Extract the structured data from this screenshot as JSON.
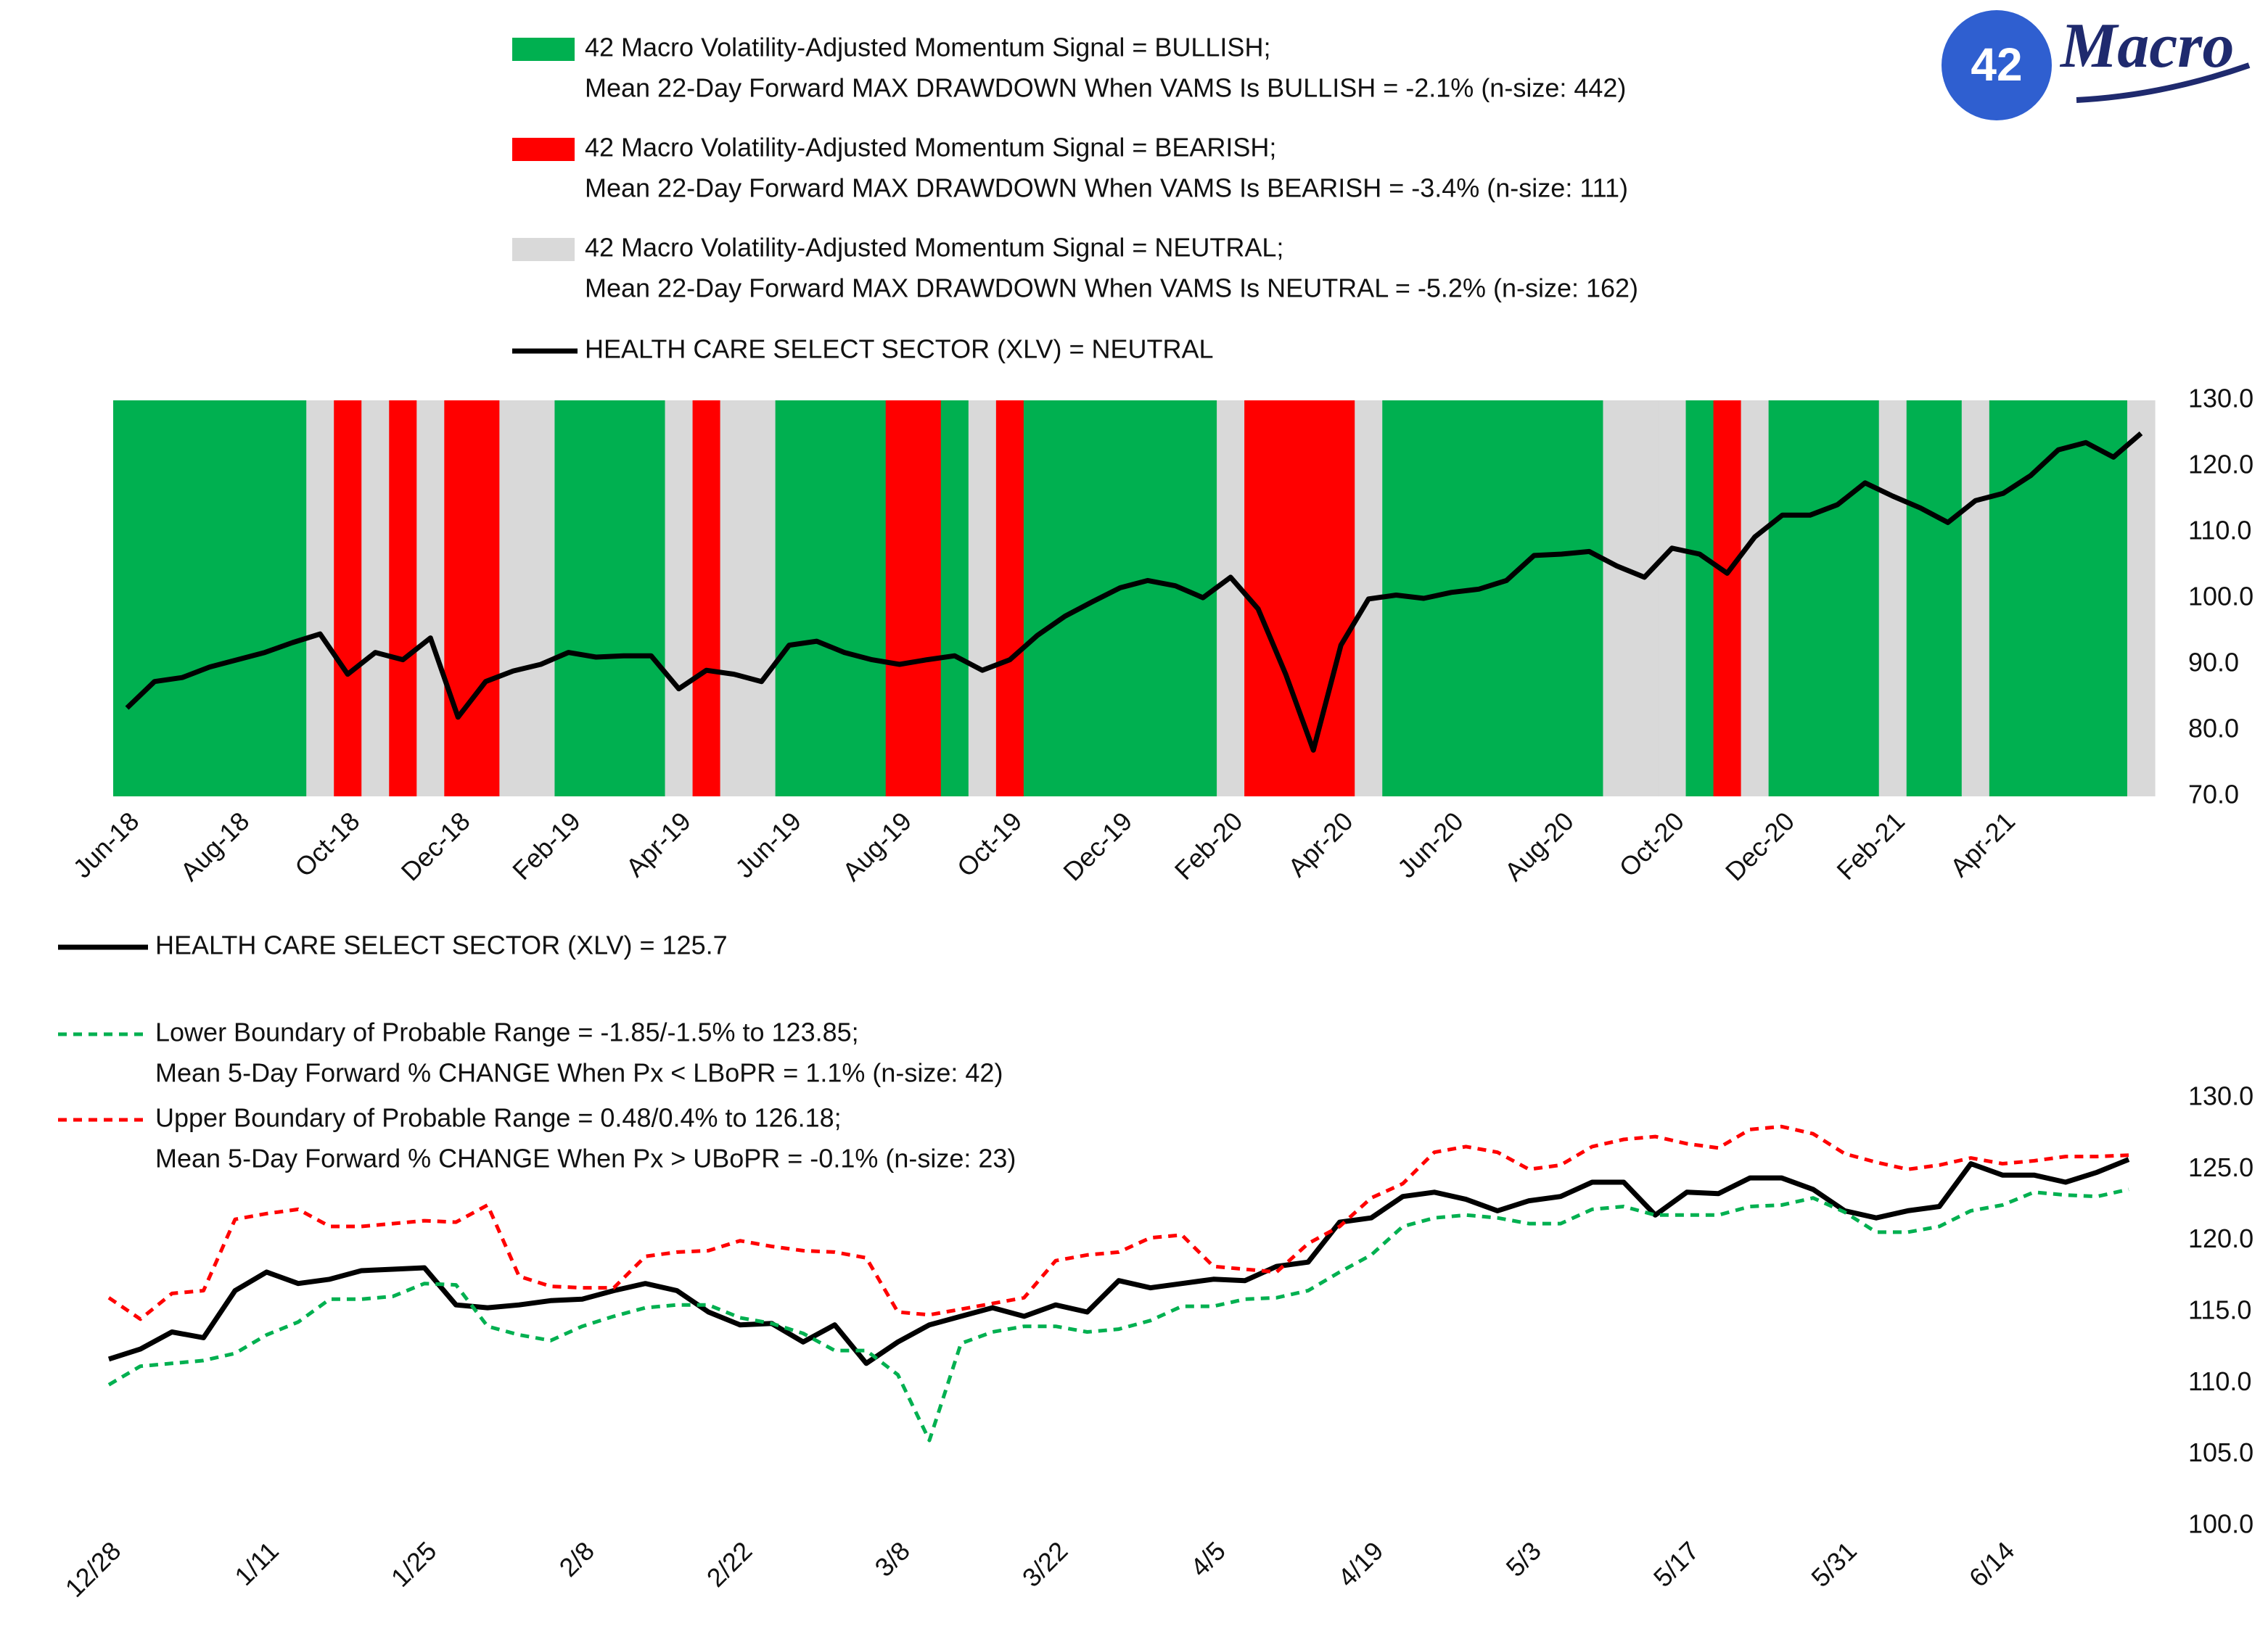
{
  "logo": {
    "number": "42",
    "word": "Macro"
  },
  "chart_data": [
    {
      "type": "line",
      "categories": [
        "Jun-18",
        null,
        null,
        null,
        "Aug-18",
        null,
        null,
        null,
        "Oct-18",
        null,
        null,
        null,
        "Dec-18",
        null,
        null,
        null,
        "Feb-19",
        null,
        null,
        null,
        "Apr-19",
        null,
        null,
        null,
        "Jun-19",
        null,
        null,
        null,
        "Aug-19",
        null,
        null,
        null,
        "Oct-19",
        null,
        null,
        null,
        "Dec-19",
        null,
        null,
        null,
        "Feb-20",
        null,
        null,
        null,
        "Apr-20",
        null,
        null,
        null,
        "Jun-20",
        null,
        null,
        null,
        "Aug-20",
        null,
        null,
        null,
        "Oct-20",
        null,
        null,
        null,
        "Dec-20",
        null,
        null,
        null,
        "Feb-21",
        null,
        null,
        null,
        "Apr-21",
        null,
        null,
        null,
        null,
        null
      ],
      "regime_legend": [
        {
          "state": "BULLISH",
          "color": "#00b050",
          "name": [
            "42 Macro Volatility-Adjusted Momentum Signal = BULLISH;",
            "Mean 22-Day Forward MAX DRAWDOWN When VAMS Is BULLISH = -2.1% (n-size: 442)"
          ]
        },
        {
          "state": "BEARISH",
          "color": "#ff0000",
          "name": [
            "42 Macro Volatility-Adjusted Momentum Signal = BEARISH;",
            "Mean 22-Day Forward MAX DRAWDOWN When VAMS Is BEARISH = -3.4% (n-size: 111)"
          ]
        },
        {
          "state": "NEUTRAL",
          "color": "#d9d9d9",
          "name": [
            "42 Macro Volatility-Adjusted Momentum Signal = NEUTRAL;",
            "Mean 22-Day Forward MAX DRAWDOWN When VAMS Is NEUTRAL = -5.2% (n-size: 162)"
          ]
        }
      ],
      "regimes": [
        "BULLISH",
        "BULLISH",
        "BULLISH",
        "BULLISH",
        "BULLISH",
        "BULLISH",
        "BULLISH",
        "NEUTRAL",
        "BEARISH",
        "NEUTRAL",
        "BEARISH",
        "NEUTRAL",
        "BEARISH",
        "BEARISH",
        "NEUTRAL",
        "NEUTRAL",
        "BULLISH",
        "BULLISH",
        "BULLISH",
        "BULLISH",
        "NEUTRAL",
        "BEARISH",
        "NEUTRAL",
        "NEUTRAL",
        "BULLISH",
        "BULLISH",
        "BULLISH",
        "BULLISH",
        "BEARISH",
        "BEARISH",
        "BULLISH",
        "NEUTRAL",
        "BEARISH",
        "BULLISH",
        "BULLISH",
        "BULLISH",
        "BULLISH",
        "BULLISH",
        "BULLISH",
        "BULLISH",
        "NEUTRAL",
        "BEARISH",
        "BEARISH",
        "BEARISH",
        "BEARISH",
        "NEUTRAL",
        "BULLISH",
        "BULLISH",
        "BULLISH",
        "BULLISH",
        "BULLISH",
        "BULLISH",
        "BULLISH",
        "BULLISH",
        "NEUTRAL",
        "NEUTRAL",
        "NEUTRAL",
        "BULLISH",
        "BEARISH",
        "NEUTRAL",
        "BULLISH",
        "BULLISH",
        "BULLISH",
        "BULLISH",
        "NEUTRAL",
        "BULLISH",
        "BULLISH",
        "NEUTRAL",
        "BULLISH",
        "BULLISH",
        "BULLISH",
        "BULLISH",
        "BULLISH",
        "NEUTRAL"
      ],
      "series": [
        {
          "name": [
            "HEALTH CARE SELECT SECTOR (XLV) = NEUTRAL"
          ],
          "color": "#000000",
          "dash": false,
          "values": [
            83.4,
            87.4,
            88,
            89.6,
            90.7,
            91.8,
            93.3,
            94.6,
            88.5,
            91.8,
            90.7,
            94,
            82,
            87.4,
            89,
            90,
            91.8,
            91.1,
            91.3,
            91.3,
            86.3,
            89.1,
            88.5,
            87.4,
            92.9,
            93.5,
            91.8,
            90.7,
            90,
            90.7,
            91.3,
            89.1,
            90.7,
            94.4,
            97.3,
            99.5,
            101.6,
            102.7,
            101.9,
            100.1,
            103.2,
            98.4,
            88.5,
            77,
            92.9,
            99.9,
            100.5,
            100,
            100.9,
            101.4,
            102.7,
            106.5,
            106.7,
            107.1,
            104.9,
            103.2,
            107.6,
            106.7,
            103.8,
            109.3,
            112.6,
            112.6,
            114.2,
            117.5,
            115.5,
            113.7,
            111.5,
            114.8,
            115.9,
            118.6,
            122.5,
            123.6,
            121.4,
            125
          ]
        }
      ],
      "ylim": [
        70,
        130
      ],
      "yticks": [
        {
          "value": 70,
          "label": "70.0"
        },
        {
          "value": 80,
          "label": "80.0"
        },
        {
          "value": 90,
          "label": "90.0"
        },
        {
          "value": 100,
          "label": "100.0"
        },
        {
          "value": 110,
          "label": "110.0"
        },
        {
          "value": 120,
          "label": "120.0"
        },
        {
          "value": 130,
          "label": "130.0"
        }
      ],
      "grid": false
    },
    {
      "type": "line",
      "categories": [
        "12/28",
        null,
        null,
        null,
        null,
        "1/11",
        null,
        null,
        null,
        null,
        "1/25",
        null,
        null,
        null,
        null,
        "2/8",
        null,
        null,
        null,
        null,
        "2/22",
        null,
        null,
        null,
        null,
        "3/8",
        null,
        null,
        null,
        null,
        "3/22",
        null,
        null,
        null,
        null,
        "4/5",
        null,
        null,
        null,
        null,
        "4/19",
        null,
        null,
        null,
        null,
        "5/3",
        null,
        null,
        null,
        null,
        "5/17",
        null,
        null,
        null,
        null,
        "5/31",
        null,
        null,
        null,
        null,
        "6/14",
        null,
        null,
        null,
        null
      ],
      "series": [
        {
          "name": [
            "HEALTH CARE SELECT SECTOR (XLV) = 125.7"
          ],
          "color": "#000000",
          "dash": false,
          "values": [
            111.7,
            112.4,
            113.6,
            113.2,
            116.5,
            117.8,
            117,
            117.3,
            117.9,
            118,
            118.1,
            115.5,
            115.3,
            115.5,
            115.8,
            115.9,
            116.5,
            117,
            116.5,
            115,
            114.1,
            114.2,
            112.9,
            114.1,
            111.4,
            112.9,
            114.1,
            114.7,
            115.3,
            114.7,
            115.5,
            115,
            117.2,
            116.7,
            117,
            117.3,
            117.2,
            118.2,
            118.5,
            121.3,
            121.6,
            123.1,
            123.4,
            122.9,
            122.1,
            122.8,
            123.1,
            124.1,
            124.1,
            121.8,
            123.4,
            123.3,
            124.4,
            124.4,
            123.6,
            122.1,
            121.6,
            122.1,
            122.4,
            125.4,
            124.6,
            124.6,
            124.1,
            124.8,
            125.7
          ]
        },
        {
          "name": [
            "Lower Boundary of Probable Range = -1.85/-1.5% to 123.85;",
            "Mean 5-Day Forward % CHANGE When Px < LBoPR = 1.1% (n-size: 42)"
          ],
          "color": "#00b050",
          "dash": true,
          "values": [
            109.9,
            111.2,
            111.4,
            111.6,
            112.1,
            113.4,
            114.3,
            115.9,
            115.9,
            116.1,
            117,
            116.9,
            114,
            113.4,
            113,
            114,
            114.7,
            115.3,
            115.5,
            115.5,
            114.6,
            114.2,
            113.5,
            112.3,
            112.3,
            110.6,
            106,
            112.8,
            113.6,
            114,
            114,
            113.6,
            113.8,
            114.4,
            115.4,
            115.4,
            115.9,
            116,
            116.5,
            117.8,
            119,
            121,
            121.6,
            121.8,
            121.6,
            121.2,
            121.2,
            122.2,
            122.4,
            121.8,
            121.8,
            121.8,
            122.4,
            122.5,
            123,
            122,
            120.6,
            120.6,
            121,
            122.1,
            122.5,
            123.4,
            123.2,
            123.1,
            123.6
          ]
        },
        {
          "name": [
            "Upper Boundary of Probable Range = 0.48/0.4% to 126.18;",
            "Mean 5-Day Forward % CHANGE When Px > UBoPR = -0.1% (n-size: 23)"
          ],
          "color": "#ff0000",
          "dash": true,
          "values": [
            116,
            114.5,
            116.3,
            116.5,
            121.5,
            121.9,
            122.2,
            121,
            121,
            121.2,
            121.4,
            121.3,
            122.5,
            117.5,
            116.8,
            116.7,
            116.7,
            118.9,
            119.2,
            119.3,
            120,
            119.6,
            119.3,
            119.2,
            118.8,
            115,
            114.8,
            115.2,
            115.6,
            116,
            118.6,
            119,
            119.2,
            120.2,
            120.4,
            118.2,
            118,
            117.8,
            119.8,
            121,
            123,
            124,
            126.2,
            126.6,
            126.2,
            125,
            125.3,
            126.6,
            127.1,
            127.3,
            126.8,
            126.5,
            127.8,
            128,
            127.5,
            126.1,
            125.5,
            125,
            125.3,
            125.8,
            125.4,
            125.6,
            125.9,
            125.9,
            126
          ]
        }
      ],
      "ylim": [
        100,
        130
      ],
      "yticks": [
        {
          "value": 100,
          "label": "100.0"
        },
        {
          "value": 105,
          "label": "105.0"
        },
        {
          "value": 110,
          "label": "110.0"
        },
        {
          "value": 115,
          "label": "115.0"
        },
        {
          "value": 120,
          "label": "120.0"
        },
        {
          "value": 125,
          "label": "125.0"
        },
        {
          "value": 130,
          "label": "130.0"
        }
      ],
      "grid": false
    }
  ]
}
